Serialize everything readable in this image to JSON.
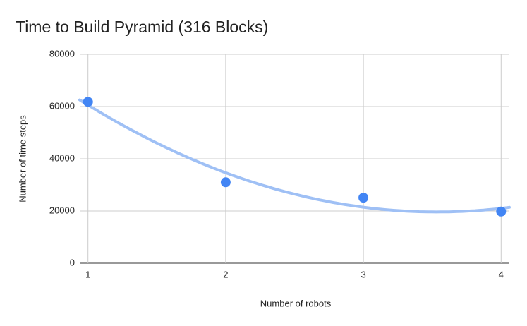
{
  "chart_data": {
    "type": "scatter",
    "title": "Time to Build Pyramid (316 Blocks)",
    "x_label": "Number of robots",
    "y_label": "Number of time steps",
    "x": [
      1,
      2,
      3,
      4
    ],
    "values": [
      61800,
      31000,
      25100,
      19800
    ],
    "color": "#4285f4",
    "trendline": {
      "type": "polynomial",
      "degree": 2,
      "color": "#9fc0f5"
    },
    "xlim": [
      0.94,
      4.06
    ],
    "xticks": [
      1,
      2,
      3,
      4
    ],
    "ylim": [
      0,
      80000
    ],
    "yticks": [
      0,
      20000,
      40000,
      60000,
      80000
    ],
    "grid": true
  }
}
